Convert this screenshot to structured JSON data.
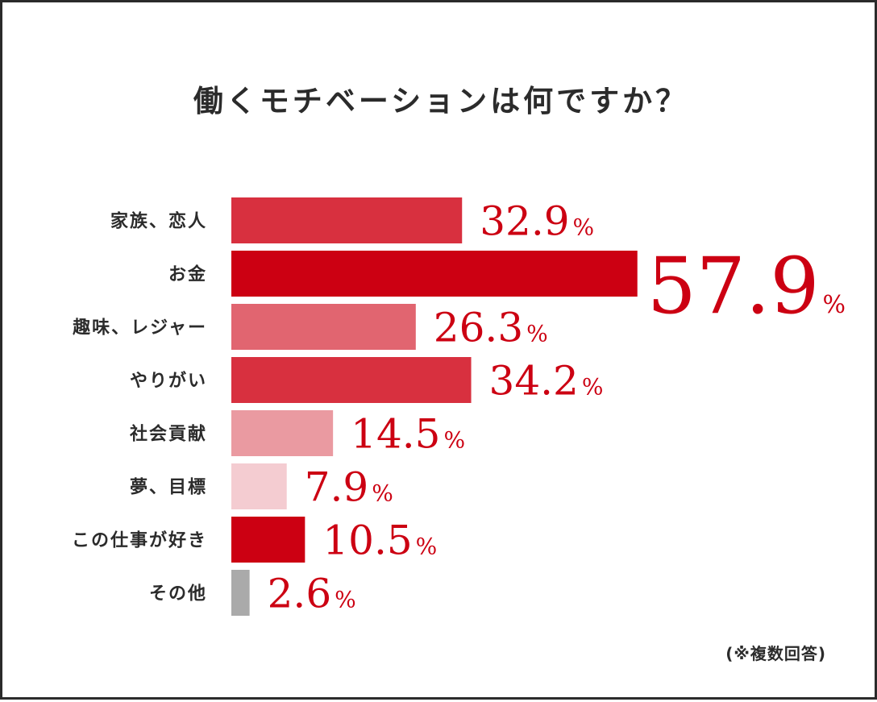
{
  "chart_data": {
    "type": "bar",
    "orientation": "horizontal",
    "title": "働くモチベーションは何ですか？",
    "categories": [
      "家族、恋人",
      "お金",
      "趣味、レジャー",
      "やりがい",
      "社会貢献",
      "夢、目標",
      "この仕事が好き",
      "その他"
    ],
    "values": [
      32.9,
      57.9,
      26.3,
      34.2,
      14.5,
      7.9,
      10.5,
      2.6
    ],
    "value_labels": [
      "32.9",
      "57.9",
      "26.3",
      "34.2",
      "14.5",
      "7.9",
      "10.5",
      "2.6"
    ],
    "unit": "%",
    "colors": [
      "#d8303f",
      "#cc0012",
      "#e16570",
      "#d8303f",
      "#ea9aa1",
      "#f4ccd1",
      "#cc0012",
      "#aaaaaa"
    ],
    "highlight_index": 1,
    "xlim": [
      0,
      60
    ],
    "grid": false,
    "legend": "none"
  },
  "footnote": "(※複数回答)"
}
